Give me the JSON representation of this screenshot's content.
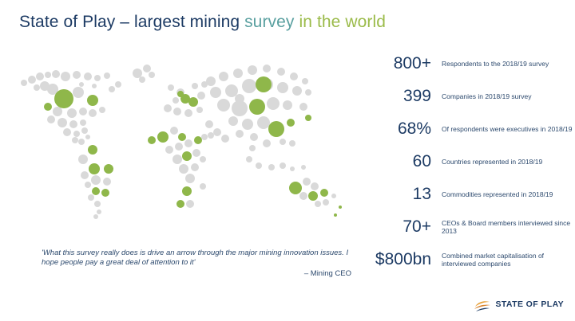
{
  "title": {
    "part1": "State of Play – largest mining ",
    "part2": "survey",
    "part3": " in the world",
    "colors": {
      "primary": "#1d3b64",
      "teal": "#5aa0a0",
      "green": "#9bbb4a"
    }
  },
  "map": {
    "icon": "world-bubble-map",
    "colors": {
      "land": "#d9d9d9",
      "highlight": "#8fb74a"
    }
  },
  "stats": [
    {
      "value": "800+",
      "label": "Respondents to the 2018/19 survey"
    },
    {
      "value": "399",
      "label": "Companies in 2018/19 survey"
    },
    {
      "value": "68%",
      "label": "Of respondents were executives in 2018/19"
    },
    {
      "value": "60",
      "label": "Countries represented in 2018/19"
    },
    {
      "value": "13",
      "label": "Commodities represented in 2018/19"
    },
    {
      "value": "70+",
      "label": "CEOs & Board members interviewed since 2013"
    },
    {
      "value": "$800bn",
      "label": "Combined market capitalisation of interviewed companies"
    }
  ],
  "quote": {
    "text": "'What this survey really does is drive an arrow through the major mining innovation issues. I hope people pay a great deal of attention to it'",
    "attribution": "– Mining CEO"
  },
  "logo": {
    "text": "STATE OF PLAY",
    "icon": "state-of-play-logo-icon"
  }
}
